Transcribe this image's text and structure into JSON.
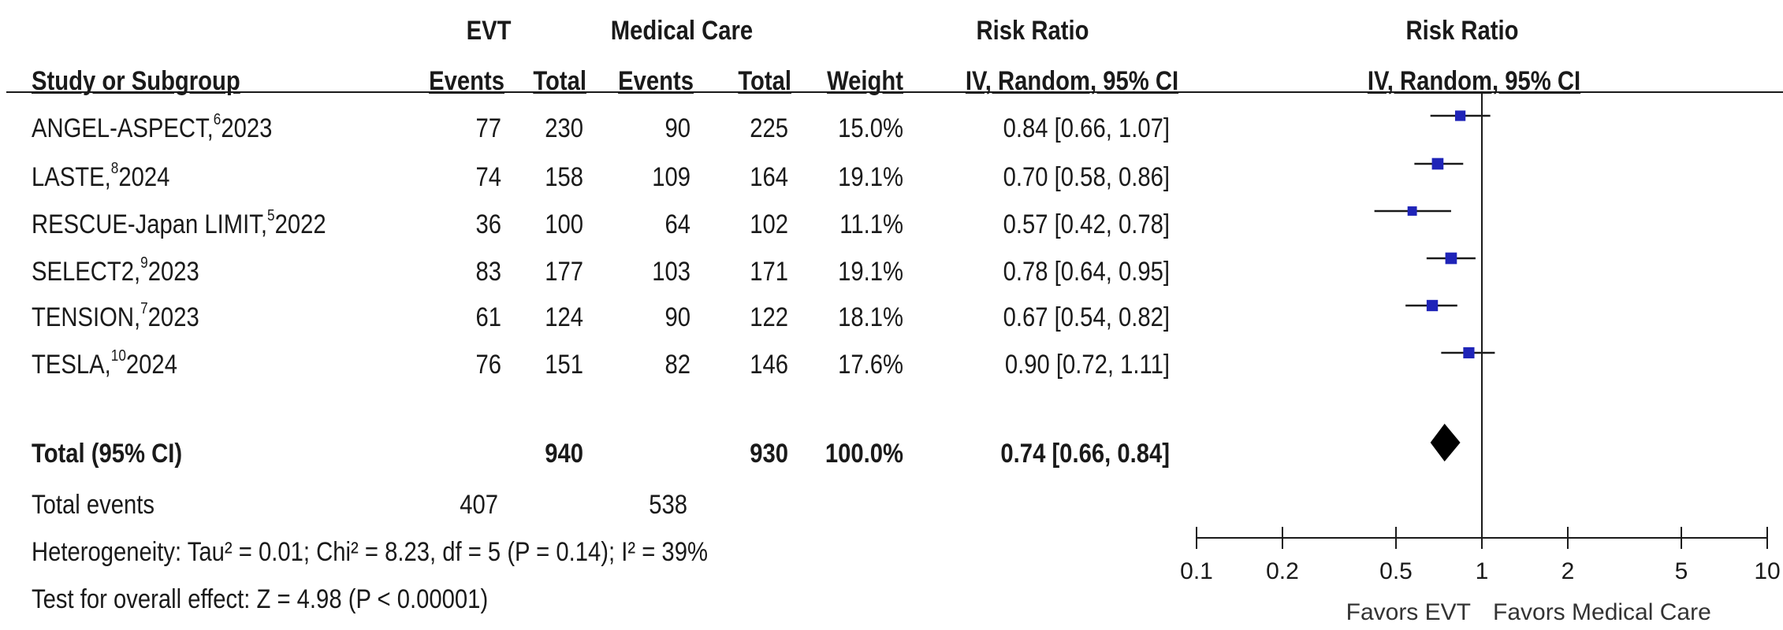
{
  "header": {
    "evt": "EVT",
    "medical_care": "Medical Care",
    "risk_ratio": "Risk Ratio",
    "risk_ratio_plot": "Risk Ratio",
    "study": "Study or Subgroup",
    "events1": "Events",
    "total1": "Total",
    "events2": "Events",
    "total2": "Total",
    "weight": "Weight",
    "method": "IV, Random, 95% CI",
    "method_plot": "IV, Random, 95% CI"
  },
  "studies": [
    {
      "name": "ANGEL-ASPECT,",
      "ref": "6",
      "year": "2023",
      "e1": "77",
      "t1": "230",
      "e2": "90",
      "t2": "225",
      "weight": "15.0%",
      "ci_text": "0.84 [0.66, 1.07]"
    },
    {
      "name": "LASTE,",
      "ref": "8",
      "year": "2024",
      "e1": "74",
      "t1": "158",
      "e2": "109",
      "t2": "164",
      "weight": "19.1%",
      "ci_text": "0.70 [0.58, 0.86]"
    },
    {
      "name": "RESCUE-Japan LIMIT,",
      "ref": "5",
      "year": "2022",
      "e1": "36",
      "t1": "100",
      "e2": "64",
      "t2": "102",
      "weight": "11.1%",
      "ci_text": "0.57 [0.42, 0.78]"
    },
    {
      "name": "SELECT2,",
      "ref": "9",
      "year": "2023",
      "e1": "83",
      "t1": "177",
      "e2": "103",
      "t2": "171",
      "weight": "19.1%",
      "ci_text": "0.78 [0.64, 0.95]"
    },
    {
      "name": "TENSION,",
      "ref": "7",
      "year": "2023",
      "e1": "61",
      "t1": "124",
      "e2": "90",
      "t2": "122",
      "weight": "18.1%",
      "ci_text": "0.67 [0.54, 0.82]"
    },
    {
      "name": "TESLA,",
      "ref": "10",
      "year": "2024",
      "e1": "76",
      "t1": "151",
      "e2": "82",
      "t2": "146",
      "weight": "17.6%",
      "ci_text": "0.90 [0.72, 1.11]"
    }
  ],
  "total": {
    "label": "Total (95% CI)",
    "t1": "940",
    "t2": "930",
    "weight": "100.0%",
    "ci_text": "0.74 [0.66, 0.84]"
  },
  "total_events": {
    "label": "Total events",
    "e1": "407",
    "e2": "538"
  },
  "heterogeneity": "Heterogeneity: Tau² = 0.01; Chi² = 8.23, df = 5 (P = 0.14); I² = 39%",
  "overall_effect": "Test for overall effect: Z = 4.98 (P < 0.00001)",
  "favors_left": "Favors EVT",
  "favors_right": "Favors Medical Care",
  "colors": {
    "marker": "#1f24b8",
    "line": "#1a1a1a",
    "diamond": "#000000"
  },
  "chart_data": {
    "type": "forest",
    "title": "Risk Ratio",
    "xlabel": "IV, Random, 95% CI",
    "xscale": "log",
    "xlim": [
      0.1,
      10
    ],
    "ticks": [
      0.1,
      0.2,
      0.5,
      1,
      2,
      5,
      10
    ],
    "tick_labels": [
      "0.1",
      "0.2",
      "0.5",
      "1",
      "2",
      "5",
      "10"
    ],
    "reference_line": 1,
    "studies": [
      {
        "label": "ANGEL-ASPECT, 2023",
        "rr": 0.84,
        "lo": 0.66,
        "hi": 1.07,
        "weight": 15.0
      },
      {
        "label": "LASTE, 2024",
        "rr": 0.7,
        "lo": 0.58,
        "hi": 0.86,
        "weight": 19.1
      },
      {
        "label": "RESCUE-Japan LIMIT, 2022",
        "rr": 0.57,
        "lo": 0.42,
        "hi": 0.78,
        "weight": 11.1
      },
      {
        "label": "SELECT2, 2023",
        "rr": 0.78,
        "lo": 0.64,
        "hi": 0.95,
        "weight": 19.1
      },
      {
        "label": "TENSION, 2023",
        "rr": 0.67,
        "lo": 0.54,
        "hi": 0.82,
        "weight": 18.1
      },
      {
        "label": "TESLA, 2024",
        "rr": 0.9,
        "lo": 0.72,
        "hi": 1.11,
        "weight": 17.6
      }
    ],
    "pooled": {
      "rr": 0.74,
      "lo": 0.66,
      "hi": 0.84
    }
  }
}
